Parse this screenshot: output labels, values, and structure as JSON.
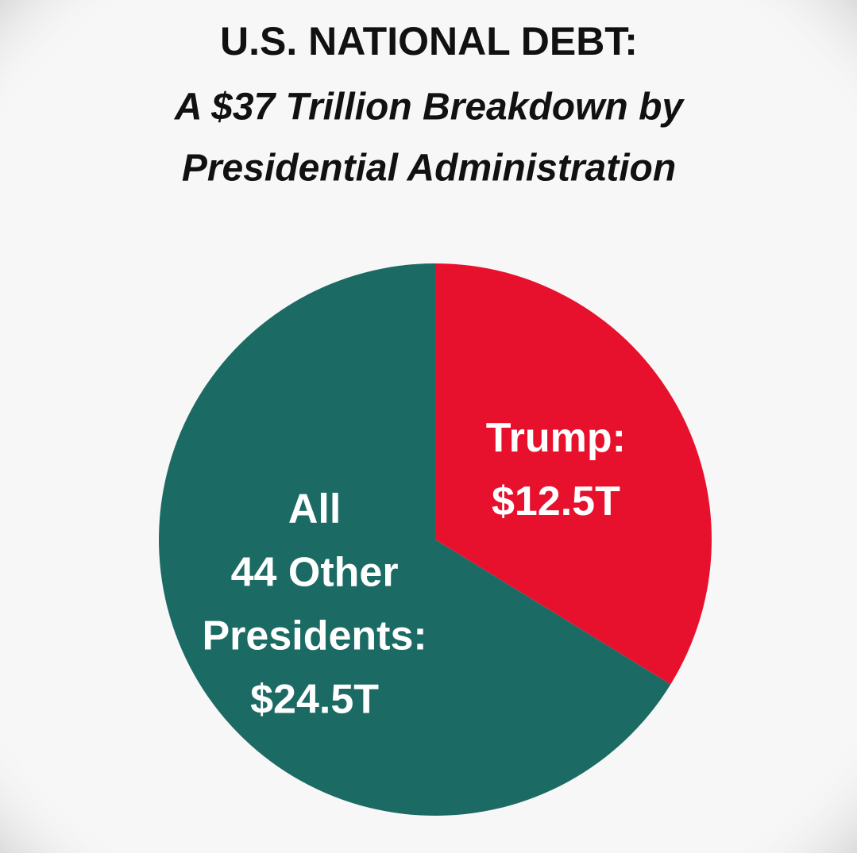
{
  "chart_data": {
    "type": "pie",
    "title": "U.S. NATIONAL DEBT:",
    "subtitle": [
      "A $37 Trillion Breakdown by",
      "Presidential Administration"
    ],
    "categories": [
      [
        "Trump:"
      ],
      [
        "All",
        "44 Other",
        "Presidents:"
      ]
    ],
    "values": [
      12.5,
      24.5
    ],
    "value_labels": [
      "$12.5T",
      "$24.5T"
    ],
    "colors": [
      "#e8112d",
      "#1b6b64"
    ]
  }
}
